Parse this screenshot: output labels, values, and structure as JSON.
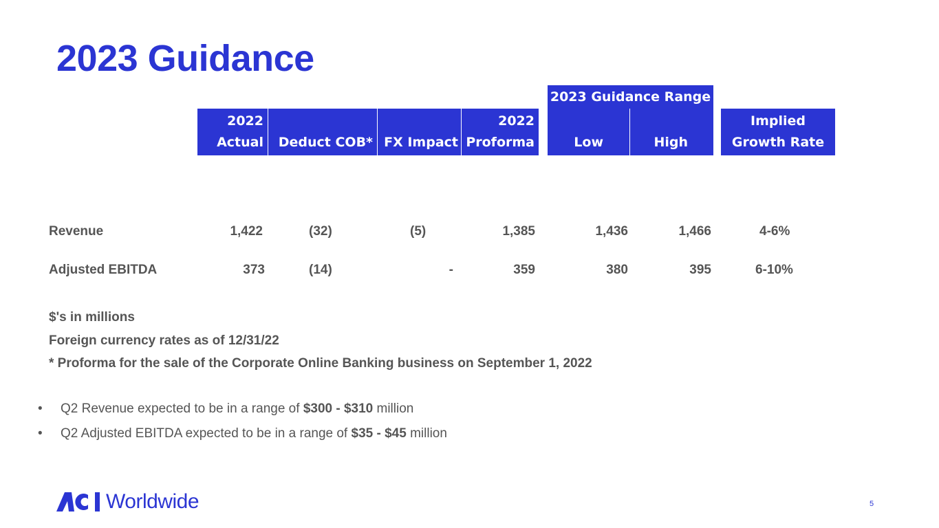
{
  "title": "2023 Guidance",
  "table": {
    "group_header": "2023 Guidance Range",
    "headers": {
      "actual_line1": "2022",
      "actual_line2": "Actual",
      "deduct": "Deduct COB*",
      "fx": "FX Impact",
      "proforma_line1": "2022",
      "proforma_line2": "Proforma",
      "low": "Low",
      "high": "High",
      "growth_line1": "Implied",
      "growth_line2": "Growth Rate"
    },
    "rows": [
      {
        "label": "Revenue",
        "actual": "1,422",
        "deduct": "(32)",
        "fx": "(5)",
        "proforma": "1,385",
        "low": "1,436",
        "high": "1,466",
        "growth": "4-6%"
      },
      {
        "label": "Adjusted EBITDA",
        "actual": "373",
        "deduct": "(14)",
        "fx": "-",
        "proforma": "359",
        "low": "380",
        "high": "395",
        "growth": "6-10%"
      }
    ]
  },
  "notes": [
    "$'s in millions",
    "Foreign currency rates as of 12/31/22",
    "* Proforma for the sale of the Corporate Online Banking business on September 1, 2022"
  ],
  "bullets": [
    {
      "marker": "•",
      "pre": "Q2 Revenue expected to be in a range of ",
      "bold": "$300 - $310",
      "post": " million"
    },
    {
      "marker": "•",
      "pre": "Q2 Adjusted EBITDA expected to be in a range of ",
      "bold": "$35 - $45",
      "post": " million"
    }
  ],
  "footer": {
    "logo_mark": "ACI",
    "logo_word": "Worldwide",
    "page_number": "5"
  },
  "colors": {
    "brand_blue": "#2b35d3",
    "text_gray": "#555555"
  }
}
